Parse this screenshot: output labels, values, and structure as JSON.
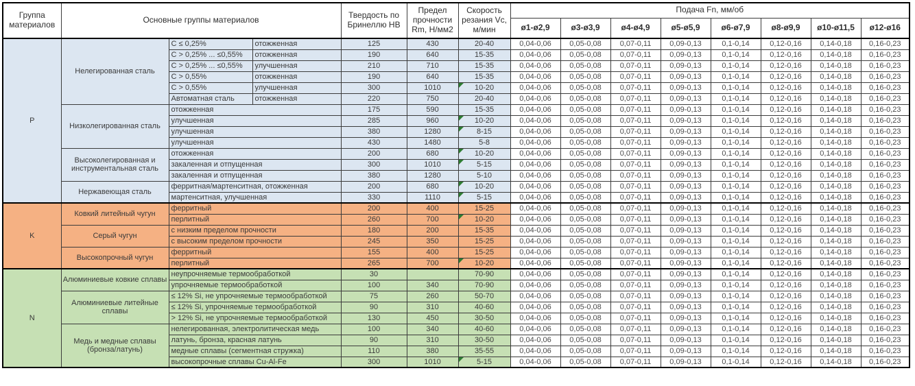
{
  "header": {
    "col_group": "Группа материалов",
    "col_materials": "Основные группы материалов",
    "col_hardness": "Твердость по Бринеллю HB",
    "col_strength": "Предел прочности Rm, Н/мм2",
    "col_speed": "Скорость резания Vc, м/мин",
    "feed_title": "Подача Fn, мм/об",
    "feed_cols": [
      "ø1-ø2,9",
      "ø3-ø3,9",
      "ø4-ø4,9",
      "ø5-ø5,9",
      "ø6-ø7,9",
      "ø8-ø9,9",
      "ø10-ø11,5",
      "ø12-ø16"
    ]
  },
  "feed_values": [
    "0,04-0,06",
    "0,05-0,08",
    "0,07-0,11",
    "0,09-0,13",
    "0,1-0,14",
    "0,12-0,16",
    "0,14-0,18",
    "0,16-0,23"
  ],
  "colors": {
    "group_p": "#dce6f1",
    "group_k": "#f5b183",
    "group_n": "#c6e0b4",
    "flag_triangle": "#2e7d32",
    "border": "#3b3b3b"
  },
  "groups": [
    {
      "code": "P",
      "color": "#dce6f1",
      "subgroups": [
        {
          "name": "Нелегированная сталь",
          "rows": [
            {
              "c1": "C ≤ 0,25%",
              "c2": "отожженная",
              "hb": "125",
              "rm": "430",
              "vc": "20-40",
              "flag": false
            },
            {
              "c1": "C > 0,25% ... ≤0,55%",
              "c2": "отожженная",
              "hb": "190",
              "rm": "640",
              "vc": "15-35",
              "flag": false
            },
            {
              "c1": "C > 0,25% ... ≤0,55%",
              "c2": "улучшенная",
              "hb": "210",
              "rm": "710",
              "vc": "15-35",
              "flag": false
            },
            {
              "c1": "C > 0,55%",
              "c2": "отожженная",
              "hb": "190",
              "rm": "640",
              "vc": "15-35",
              "flag": false
            },
            {
              "c1": "C > 0,55%",
              "c2": "улучшенная",
              "hb": "300",
              "rm": "1010",
              "vc": "10-20",
              "flag": true
            },
            {
              "c1": "Автоматная сталь",
              "c2": "отожженная",
              "hb": "220",
              "rm": "750",
              "vc": "20-40",
              "flag": false
            }
          ]
        },
        {
          "name": "Низколегированная сталь",
          "rows": [
            {
              "desc": "отожженная",
              "hb": "175",
              "rm": "590",
              "vc": "15-35",
              "flag": false
            },
            {
              "desc": "улучшенная",
              "hb": "285",
              "rm": "960",
              "vc": "10-20",
              "flag": true
            },
            {
              "desc": "улучшенная",
              "hb": "380",
              "rm": "1280",
              "vc": "8-15",
              "flag": true
            },
            {
              "desc": "улучшенная",
              "hb": "430",
              "rm": "1480",
              "vc": "5-8",
              "flag": false
            }
          ]
        },
        {
          "name": "Высоколегированная и инструментальная сталь",
          "rows": [
            {
              "desc": "отожженная",
              "hb": "200",
              "rm": "680",
              "vc": "10-20",
              "flag": true
            },
            {
              "desc": "закаленная и отпущенная",
              "hb": "300",
              "rm": "1010",
              "vc": "5-15",
              "flag": true
            },
            {
              "desc": "закаленная и отпущенная",
              "hb": "380",
              "rm": "1280",
              "vc": "5-10",
              "flag": false
            }
          ]
        },
        {
          "name": "Нержавеющая сталь",
          "rows": [
            {
              "desc": "ферритная/мартенситная, отожженная",
              "hb": "200",
              "rm": "680",
              "vc": "10-20",
              "flag": true
            },
            {
              "desc": "мартенситная, улучшенная",
              "hb": "330",
              "rm": "1110",
              "vc": "5-15",
              "flag": true
            }
          ]
        }
      ]
    },
    {
      "code": "K",
      "color": "#f5b183",
      "subgroups": [
        {
          "name": "Ковкий литейный чугун",
          "rows": [
            {
              "desc": "ферритный",
              "hb": "200",
              "rm": "400",
              "vc": "15-25",
              "flag": false
            },
            {
              "desc": "перлитный",
              "hb": "260",
              "rm": "700",
              "vc": "10-20",
              "flag": true
            }
          ]
        },
        {
          "name": "Серый чугун",
          "rows": [
            {
              "desc": "с низким пределом прочности",
              "hb": "180",
              "rm": "200",
              "vc": "15-35",
              "flag": false
            },
            {
              "desc": "с высоким пределом прочности",
              "hb": "245",
              "rm": "350",
              "vc": "15-25",
              "flag": false
            }
          ]
        },
        {
          "name": "Высокопрочный чугун",
          "rows": [
            {
              "desc": "ферритный",
              "hb": "155",
              "rm": "400",
              "vc": "15-25",
              "flag": false
            },
            {
              "desc": "перлитный",
              "hb": "265",
              "rm": "700",
              "vc": "10-20",
              "flag": true
            }
          ]
        }
      ]
    },
    {
      "code": "N",
      "color": "#c6e0b4",
      "subgroups": [
        {
          "name": "Алюминиевые ковкие сплавы",
          "rows": [
            {
              "desc": "неупрочняемые термообработкой",
              "hb": "30",
              "rm": "",
              "vc": "70-90",
              "flag": false
            },
            {
              "desc": "упрочняемые термообработкой",
              "hb": "100",
              "rm": "340",
              "vc": "70-90",
              "flag": false
            }
          ]
        },
        {
          "name": "Алюминиевые литейные сплавы",
          "rows": [
            {
              "desc": "≤ 12% Si, не упрочняемые термообработкой",
              "hb": "75",
              "rm": "260",
              "vc": "50-70",
              "flag": false
            },
            {
              "desc": "≤ 12% Si, упрочняемые термообработкой",
              "hb": "90",
              "rm": "310",
              "vc": "40-60",
              "flag": false
            },
            {
              "desc": "> 12% Si, не упрочняемые термообработкой",
              "hb": "130",
              "rm": "450",
              "vc": "30-50",
              "flag": false
            }
          ]
        },
        {
          "name": "Медь и медные сплавы (бронза/латунь)",
          "rows": [
            {
              "desc": "нелегированная, электролитическая медь",
              "hb": "100",
              "rm": "340",
              "vc": "40-60",
              "flag": false
            },
            {
              "desc": "латунь, бронза, красная латунь",
              "hb": "90",
              "rm": "310",
              "vc": "30-50",
              "flag": false
            },
            {
              "desc": "медные сплавы (сегментная стружка)",
              "hb": "110",
              "rm": "380",
              "vc": "35-55",
              "flag": false
            },
            {
              "desc": "высокопрочные сплавы Cu-Al-Fe",
              "hb": "300",
              "rm": "1010",
              "vc": "5-15",
              "flag": true
            }
          ]
        }
      ]
    }
  ]
}
